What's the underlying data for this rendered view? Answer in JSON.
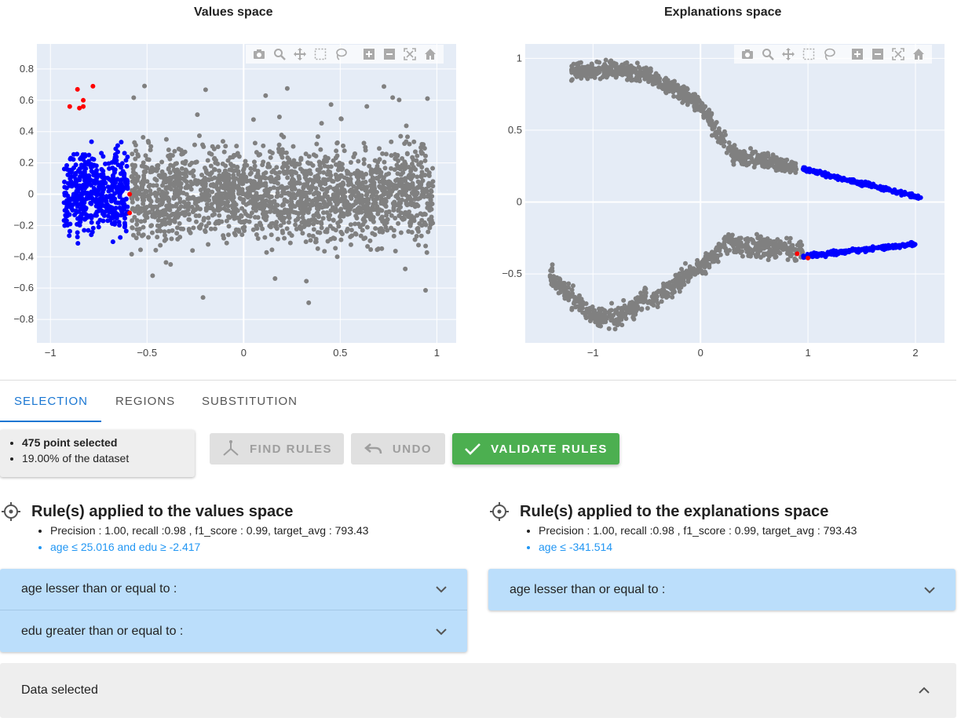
{
  "plots": {
    "values": {
      "title": "Values space",
      "x_ticks": [
        "−1",
        "−0.5",
        "0",
        "0.5",
        "1"
      ],
      "y_ticks": [
        "0.8",
        "0.6",
        "0.4",
        "0.2",
        "0",
        "−0.2",
        "−0.4",
        "−0.6",
        "−0.8"
      ]
    },
    "explanations": {
      "title": "Explanations space",
      "x_ticks": [
        "−1",
        "0",
        "1",
        "2"
      ],
      "y_ticks": [
        "1",
        "0.5",
        "0",
        "−0.5"
      ]
    }
  },
  "chart_data": [
    {
      "type": "scatter",
      "title": "Values space",
      "xlim": [
        -1.07,
        1.1
      ],
      "ylim": [
        -0.95,
        0.96
      ],
      "grid": true,
      "series": [
        {
          "color": "#808080",
          "x_range": [
            -0.58,
            0.98
          ],
          "y_range": [
            -0.7,
            0.6
          ],
          "approx_count": 2000
        },
        {
          "color": "#0000ff",
          "x_range": [
            -0.93,
            -0.6
          ],
          "y_range": [
            -0.7,
            0.5
          ],
          "approx_count": 475
        },
        {
          "color": "#ff0000",
          "points": [
            [
              -0.86,
              0.67
            ],
            [
              -0.78,
              0.69
            ],
            [
              -0.83,
              0.6
            ],
            [
              -0.85,
              0.55
            ],
            [
              -0.9,
              0.56
            ],
            [
              -0.83,
              0.56
            ],
            [
              -0.59,
              -0.12
            ],
            [
              -0.59,
              0.0
            ]
          ]
        }
      ]
    },
    {
      "type": "scatter",
      "title": "Explanations space",
      "xlim": [
        -1.63,
        2.27
      ],
      "ylim": [
        -0.98,
        1.1
      ],
      "grid": true,
      "series": [
        {
          "color": "#808080",
          "description": "two curved bands"
        },
        {
          "color": "#0000ff",
          "upper_band": [
            [
              0.95,
              0.23
            ],
            [
              2.05,
              0.02
            ]
          ],
          "lower_band": [
            [
              0.95,
              -0.38
            ],
            [
              2.0,
              -0.29
            ]
          ]
        },
        {
          "color": "#ff0000",
          "points": [
            [
              0.9,
              -0.36
            ],
            [
              1.0,
              -0.39
            ]
          ]
        }
      ]
    }
  ],
  "tabs": [
    "SELECTION",
    "REGIONS",
    "SUBSTITUTION"
  ],
  "selection": {
    "count": "475 point selected",
    "pct": "19.00% of the dataset"
  },
  "buttons": {
    "find_rules": "FIND RULES",
    "undo": "UNDO",
    "validate_rules": "VALIDATE RULES"
  },
  "rules_values": {
    "title": "Rule(s) applied to the values space",
    "metrics": "Precision : 1.00, recall :0.98 , f1_score : 0.99, target_avg : 793.43",
    "rule": "age ≤ 25.016 and edu ≥ -2.417",
    "accordions": [
      "age lesser than or equal to :",
      "edu greater than or equal to :"
    ]
  },
  "rules_expl": {
    "title": "Rule(s) applied to the explanations space",
    "metrics": "Precision : 1.00, recall :0.98 , f1_score : 0.99, target_avg : 793.43",
    "rule": "age ≤ -341.514",
    "accordions": [
      "age lesser than or equal to :"
    ]
  },
  "data_panel": {
    "label": "Data selected"
  },
  "colors": {
    "accent": "#1976d2",
    "validate": "#4caf50",
    "accordion": "#bbdefb",
    "selected": "#0000ff",
    "unselected": "#808080",
    "highlight": "#ff0000"
  }
}
